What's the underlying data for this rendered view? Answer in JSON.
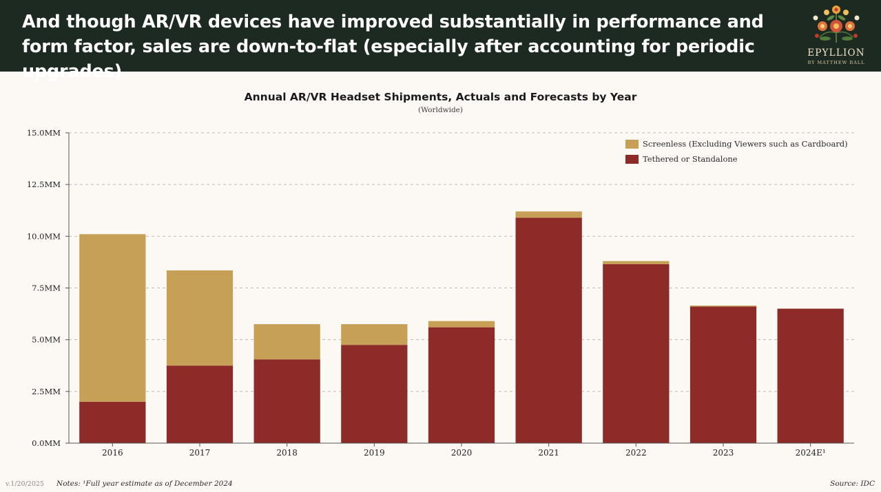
{
  "header": {
    "headline": "And though AR/VR devices have improved substantially in performance and form factor, sales are down-to-flat (especially after accounting for periodic upgrades)",
    "logo_name": "EPYLLION",
    "logo_sub": "BY MATTHEW BALL"
  },
  "colors": {
    "header_bg": "#1c2a22",
    "screenless": "#c7a057",
    "tethered": "#8c2b27",
    "background": "#fcf9f4"
  },
  "chart_data": {
    "type": "bar",
    "stacked": true,
    "title": "Annual AR/VR Headset Shipments, Actuals and Forecasts by Year",
    "subtitle": "(Worldwide)",
    "categories": [
      "2016",
      "2017",
      "2018",
      "2019",
      "2020",
      "2021",
      "2022",
      "2023",
      "2024E¹"
    ],
    "series": [
      {
        "name": "Tethered or Standalone",
        "color": "#8c2b27",
        "values": [
          2.0,
          3.75,
          4.05,
          4.75,
          5.6,
          10.9,
          8.65,
          6.6,
          6.5
        ]
      },
      {
        "name": "Screenless (Excluding Viewers such as Cardboard)",
        "color": "#c7a057",
        "values": [
          8.1,
          4.6,
          1.7,
          1.0,
          0.3,
          0.3,
          0.15,
          0.05,
          0.0
        ]
      }
    ],
    "legend_order": [
      "Screenless (Excluding Viewers such as Cardboard)",
      "Tethered or Standalone"
    ],
    "ylim": [
      0,
      15
    ],
    "yticks": [
      0,
      2.5,
      5,
      7.5,
      10,
      12.5,
      15
    ],
    "ytick_labels": [
      "0.0MM",
      "2.5MM",
      "5.0MM",
      "7.5MM",
      "10.0MM",
      "12.5MM",
      "15.0MM"
    ],
    "xlabel": "",
    "ylabel": "",
    "grid": true,
    "legend_position": "top-right"
  },
  "footer": {
    "version": "v.1/20/2025",
    "notes": "Notes: ¹Full year estimate as of December 2024",
    "source": "Source: IDC"
  }
}
